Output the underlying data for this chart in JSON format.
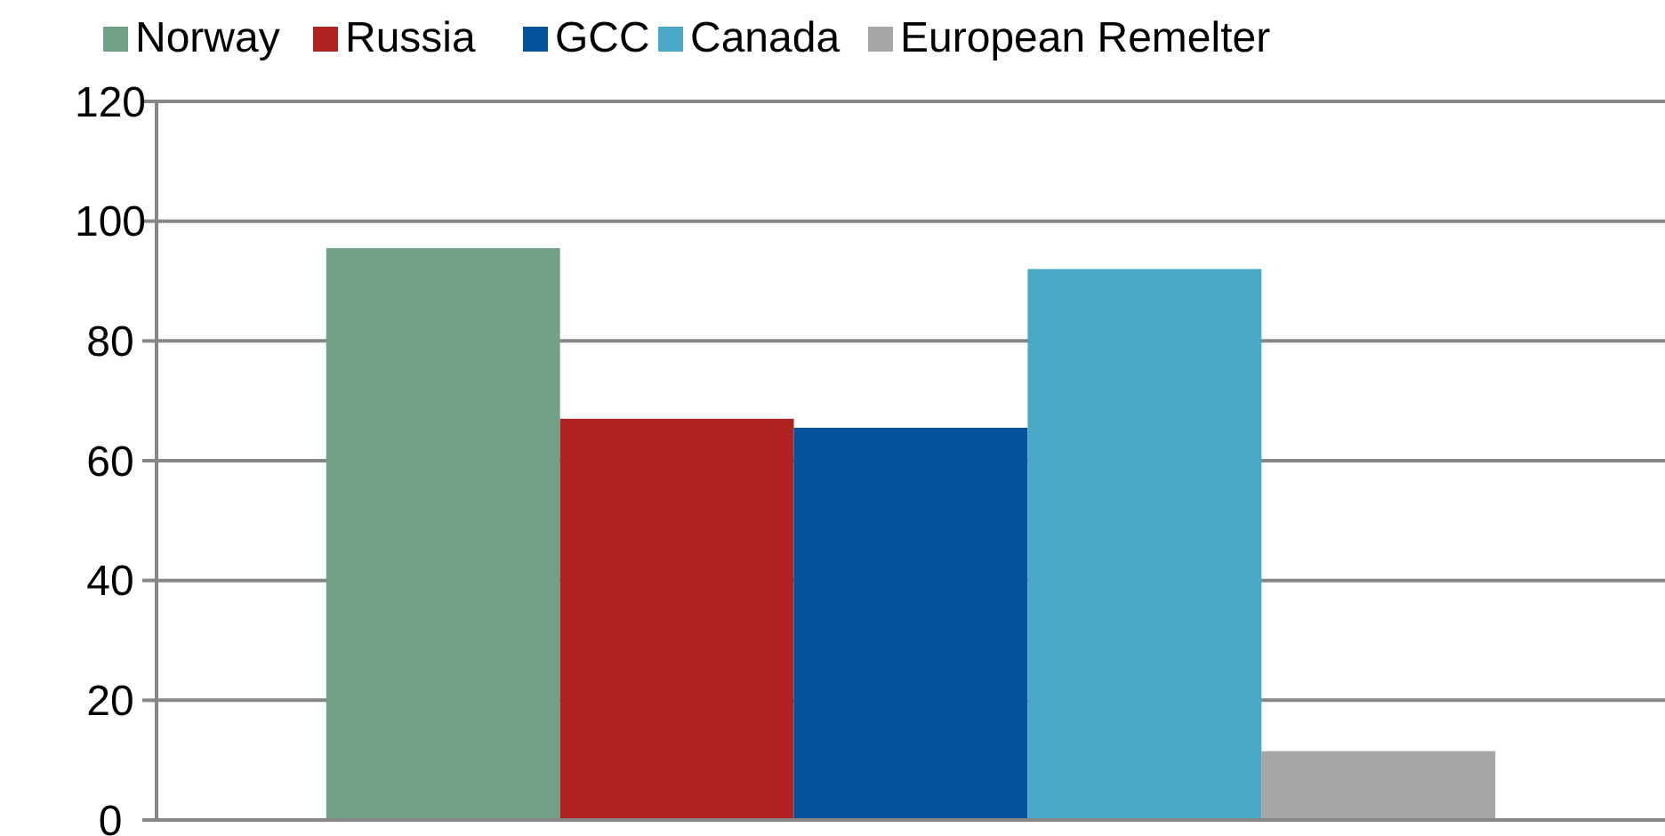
{
  "chart_data": {
    "type": "bar",
    "categories": [
      null
    ],
    "series": [
      {
        "name": "Norway",
        "color": "#70a085",
        "values": [
          95.5
        ]
      },
      {
        "name": "Russia",
        "color": "#ae2222",
        "values": [
          67
        ]
      },
      {
        "name": "GCC",
        "color": "#02529c",
        "values": [
          65.5
        ]
      },
      {
        "name": "Canada",
        "color": "#48a8c6",
        "values": [
          92
        ]
      },
      {
        "name": "European Remelter",
        "color": "#a6a6a6",
        "values": [
          11.5
        ]
      }
    ],
    "ylim": [
      0,
      120
    ],
    "yticks": [
      0,
      20,
      40,
      60,
      80,
      100,
      120
    ],
    "grid": "y",
    "legend": "top"
  }
}
